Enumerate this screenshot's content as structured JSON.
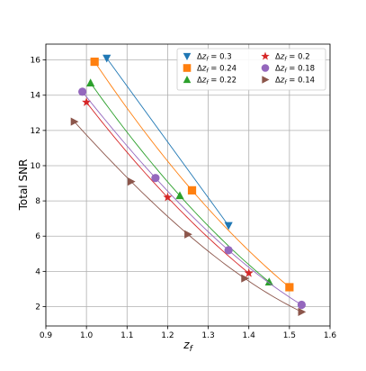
{
  "chart_data": {
    "type": "line",
    "xlabel": "z_f",
    "ylabel": "Total SNR",
    "xlim": [
      0.9,
      1.6
    ],
    "ylim": [
      0.9,
      16.9
    ],
    "xticks": [
      0.9,
      1.0,
      1.1,
      1.2,
      1.3,
      1.4,
      1.5,
      1.6
    ],
    "xtick_labels": [
      "0.9",
      "1.0",
      "1.1",
      "1.2",
      "1.3",
      "1.4",
      "1.5",
      "1.6"
    ],
    "yticks": [
      2,
      4,
      6,
      8,
      10,
      12,
      14,
      16
    ],
    "ytick_labels": [
      "2",
      "4",
      "6",
      "8",
      "10",
      "12",
      "14",
      "16"
    ],
    "grid": true,
    "legend_position": "top-right",
    "legend_columns": 2,
    "series": [
      {
        "name": "Δz_f = 0.3",
        "label": "0.3",
        "color": "#1f77b4",
        "marker": "triangle-down",
        "x": [
          1.05,
          1.35
        ],
        "y": [
          16.1,
          6.6
        ]
      },
      {
        "name": "Δz_f = 0.24",
        "label": "0.24",
        "color": "#ff7f0e",
        "marker": "square",
        "x": [
          1.02,
          1.26,
          1.5
        ],
        "y": [
          15.9,
          8.6,
          3.1
        ]
      },
      {
        "name": "Δz_f = 0.22",
        "label": "0.22",
        "color": "#2ca02c",
        "marker": "triangle-up",
        "x": [
          1.01,
          1.23,
          1.45
        ],
        "y": [
          14.7,
          8.3,
          3.4
        ]
      },
      {
        "name": "Δz_f = 0.2",
        "label": "0.2",
        "color": "#d62728",
        "marker": "star",
        "x": [
          1.0,
          1.2,
          1.4
        ],
        "y": [
          13.6,
          8.2,
          3.9
        ]
      },
      {
        "name": "Δz_f = 0.18",
        "label": "0.18",
        "color": "#9467bd",
        "marker": "circle",
        "x": [
          0.99,
          1.17,
          1.35,
          1.53
        ],
        "y": [
          14.2,
          9.3,
          5.2,
          2.1
        ]
      },
      {
        "name": "Δz_f = 0.14",
        "label": "0.14",
        "color": "#8c564b",
        "marker": "triangle-right",
        "x": [
          0.97,
          1.11,
          1.25,
          1.39,
          1.53
        ],
        "y": [
          12.5,
          9.1,
          6.1,
          3.6,
          1.7
        ]
      }
    ]
  }
}
